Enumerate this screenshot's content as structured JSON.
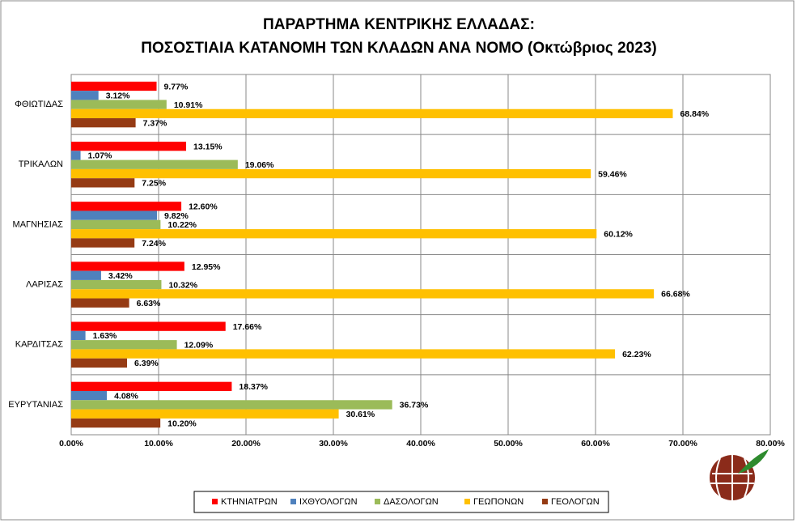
{
  "chart_data": {
    "type": "bar",
    "orientation": "horizontal",
    "title": [
      "ΠΑΡΑΡΤΗΜΑ ΚΕΝΤΡΙΚΗΣ ΕΛΛΑΔΑΣ:",
      "ΠΟΣΟΣΤΙΑΙΑ ΚΑΤΑΝΟΜΗ ΤΩΝ ΚΛΑΔΩΝ ΑΝΑ ΝΟΜΟ (Οκτώβριος 2023)"
    ],
    "categories": [
      "ΦΘΙΩΤΙΔΑΣ",
      "ΤΡΙΚΑΛΩΝ",
      "ΜΑΓΝΗΣΙΑΣ",
      "ΛΑΡΙΣΑΣ",
      "ΚΑΡΔΙΤΣΑΣ",
      "ΕΥΡΥΤΑΝΙΑΣ"
    ],
    "series": [
      {
        "name": "ΚΤΗΝΙΑΤΡΩΝ",
        "color": "#ff0000",
        "values": [
          9.77,
          13.15,
          12.6,
          12.95,
          17.66,
          18.37
        ],
        "value_labels": [
          "9.77%",
          "13.15%",
          "12.60%",
          "12.95%",
          "17.66%",
          "18.37%"
        ]
      },
      {
        "name": "ΙΧΘΥΟΛΟΓΩΝ",
        "color": "#4f81bd",
        "values": [
          3.12,
          1.07,
          9.82,
          3.42,
          1.63,
          4.08
        ],
        "value_labels": [
          "3.12%",
          "1.07%",
          "9.82%",
          "3.42%",
          "1.63%",
          "4.08%"
        ]
      },
      {
        "name": "ΔΑΣΟΛΟΓΩΝ",
        "color": "#9bbb59",
        "values": [
          10.91,
          19.06,
          10.22,
          10.32,
          12.09,
          36.73
        ],
        "value_labels": [
          "10.91%",
          "19.06%",
          "10.22%",
          "10.32%",
          "12.09%",
          "36.73%"
        ]
      },
      {
        "name": "ΓΕΩΠΟΝΩΝ",
        "color": "#ffc000",
        "values": [
          68.84,
          59.46,
          60.12,
          66.68,
          62.23,
          30.61
        ],
        "value_labels": [
          "68.84%",
          "59.46%",
          "60.12%",
          "66.68%",
          "62.23%",
          "30.61%"
        ]
      },
      {
        "name": "ΓΕΟΛΟΓΩΝ",
        "color": "#953b14",
        "values": [
          7.37,
          7.25,
          7.24,
          6.63,
          6.39,
          10.2
        ],
        "value_labels": [
          "7.37%",
          "7.25%",
          "7.24%",
          "6.63%",
          "6.39%",
          "10.20%"
        ]
      }
    ],
    "xlim": [
      0,
      80
    ],
    "xticks": [
      {
        "value": 0,
        "label": "0.00%"
      },
      {
        "value": 10,
        "label": "10.00%"
      },
      {
        "value": 20,
        "label": "20.00%"
      },
      {
        "value": 30,
        "label": "30.00%"
      },
      {
        "value": 40,
        "label": "40.00%"
      },
      {
        "value": 50,
        "label": "50.00%"
      },
      {
        "value": 60,
        "label": "60.00%"
      },
      {
        "value": 70,
        "label": "70.00%"
      },
      {
        "value": 80,
        "label": "80.00%"
      }
    ],
    "grid": true,
    "legend": "bottom"
  }
}
